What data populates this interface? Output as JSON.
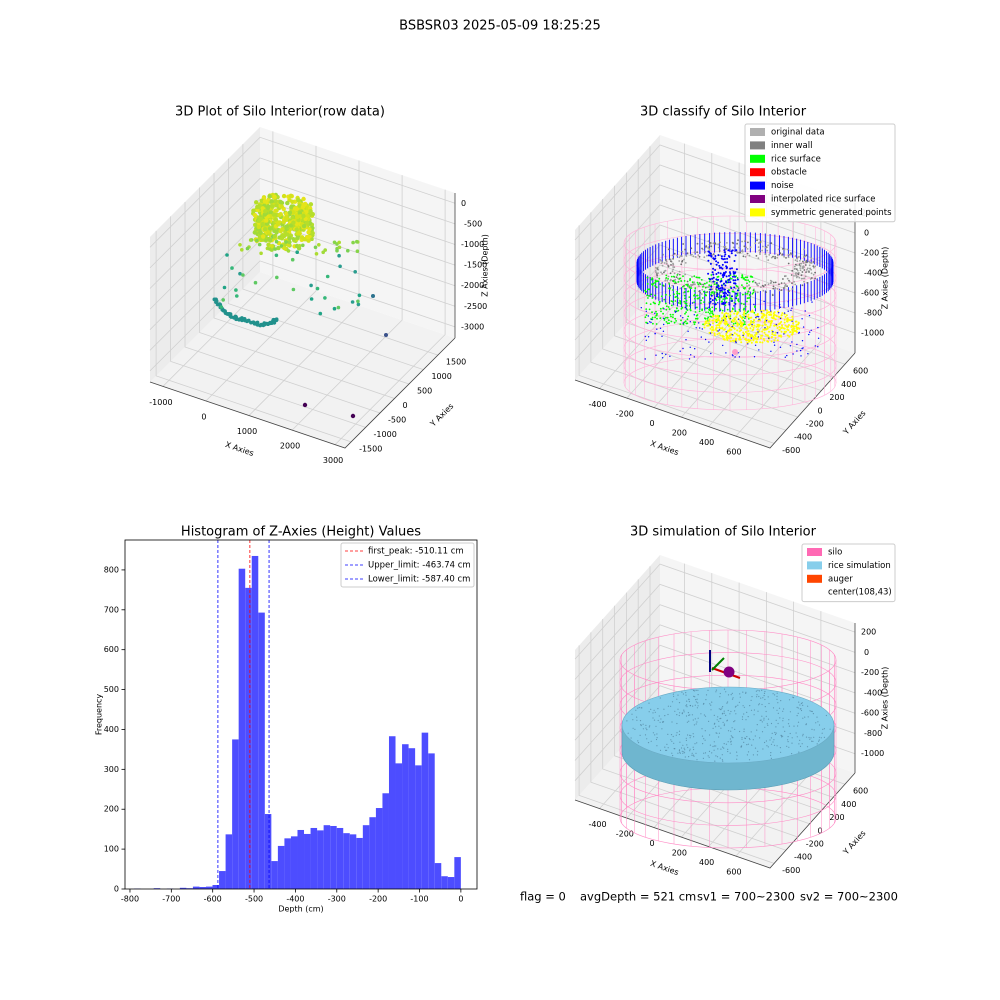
{
  "title": "BSBSR03 2025-05-09 18:25:25",
  "status": [
    "flag = 0",
    "avgDepth = 521 cm",
    "sv1 = 700~2300",
    "sv2 = 700~2300"
  ],
  "chart_data": [
    {
      "type": "scatter3d",
      "title": "3D Plot of Silo Interior(row data)",
      "xlabel": "X Axies",
      "ylabel": "Y Axies",
      "zlabel": "Z Axies (Depth)",
      "xlim": [
        -1300,
        3230
      ],
      "ylim": [
        -1710,
        2090
      ],
      "zlim": [
        -3270,
        250
      ],
      "xticks": [
        -1000,
        0,
        1000,
        2000,
        3000
      ],
      "yticks": [
        -1500,
        -1000,
        -500,
        0,
        500,
        1000,
        1500
      ],
      "zticks": [
        0,
        -500,
        -1000,
        -1500,
        -2000,
        -2500,
        -3000
      ],
      "grid": true
    },
    {
      "type": "scatter3d",
      "title": "3D classify of Silo Interior",
      "xlabel": "X Axies",
      "ylabel": "Y Axies",
      "zlabel": "Z Axies (Depth)",
      "xlim": [
        -580,
        850
      ],
      "ylim": [
        -670,
        770
      ],
      "zlim": [
        -1200,
        300
      ],
      "xticks": [
        -400,
        -200,
        0,
        200,
        400,
        600
      ],
      "yticks": [
        -600,
        -400,
        -200,
        0,
        200,
        400,
        600
      ],
      "zticks": [
        200,
        0,
        -200,
        -400,
        -600,
        -800,
        -1000
      ],
      "grid": true,
      "legend": [
        {
          "name": "original data",
          "color": "#b0b0b0"
        },
        {
          "name": "inner wall",
          "color": "#808080"
        },
        {
          "name": "rice surface",
          "color": "#00ff00"
        },
        {
          "name": "obstacle",
          "color": "#ff0000"
        },
        {
          "name": "noise",
          "color": "#0000ff"
        },
        {
          "name": "interpolated rice surface",
          "color": "#800080"
        },
        {
          "name": "symmetric generated points",
          "color": "#ffff00"
        }
      ]
    },
    {
      "type": "histogram",
      "title": "Histogram of Z-Axies (Height) Values",
      "xlabel": "Depth (cm)",
      "ylabel": "Frequency",
      "color": "#4d4dff",
      "bins": [
        -790.0,
        -774.2,
        -758.4,
        -742.6,
        -726.8,
        -711.0,
        -695.2,
        -679.4,
        -663.6,
        -647.8,
        -632.0,
        -616.2,
        -600.4,
        -584.6,
        -568.8,
        -553.0,
        -537.2,
        -521.4,
        -505.6,
        -489.8,
        -474.0,
        -458.2,
        -442.4,
        -426.6,
        -410.8,
        -395.0,
        -379.2,
        -363.4,
        -347.6,
        -331.8,
        -316.0,
        -300.2,
        -284.4,
        -268.6,
        -252.8,
        -237.0,
        -221.2,
        -205.4,
        -189.6,
        -173.8,
        -158.0,
        -142.2,
        -126.4,
        -110.6,
        -94.8,
        -79.0,
        -63.2,
        -47.4,
        -31.6,
        -15.8,
        0.0
      ],
      "values": [
        1,
        0,
        0,
        2,
        0,
        1,
        0,
        3,
        2,
        6,
        5,
        6,
        10,
        45,
        137,
        375,
        803,
        755,
        835,
        693,
        188,
        70,
        108,
        127,
        132,
        148,
        138,
        153,
        147,
        160,
        158,
        153,
        140,
        137,
        128,
        160,
        180,
        203,
        240,
        383,
        315,
        363,
        353,
        310,
        392,
        340,
        65,
        32,
        30,
        80
      ],
      "xlim": [
        -812,
        39
      ],
      "ylim": [
        0,
        875
      ],
      "xticks": [
        -800,
        -700,
        -600,
        -500,
        -400,
        -300,
        -200,
        -100,
        0
      ],
      "yticks": [
        0,
        100,
        200,
        300,
        400,
        500,
        600,
        700,
        800
      ],
      "lines": [
        {
          "label": "first_peak: -510.11 cm",
          "value": -510.11,
          "color": "#ff0000"
        },
        {
          "label": "Upper_limit: -463.74 cm",
          "value": -463.74,
          "color": "#0000ff"
        },
        {
          "label": "Lower_limit: -587.40 cm",
          "value": -587.4,
          "color": "#0000ff"
        }
      ],
      "legend_loc": "upper right"
    },
    {
      "type": "scatter3d",
      "title": "3D simulation of Silo Interior",
      "xlabel": "X Axies",
      "ylabel": "Y Axies",
      "zlabel": "Z Axies (Depth)",
      "xlim": [
        -580,
        850
      ],
      "ylim": [
        -670,
        770
      ],
      "zlim": [
        -1190,
        290
      ],
      "xticks": [
        -400,
        -200,
        0,
        200,
        400,
        600
      ],
      "yticks": [
        -600,
        -400,
        -200,
        0,
        200,
        400,
        600
      ],
      "zticks": [
        200,
        0,
        -200,
        -400,
        -600,
        -800,
        -1000
      ],
      "grid": true,
      "legend": [
        {
          "name": "silo",
          "color": "#ff69b4"
        },
        {
          "name": "rice simulation",
          "color": "#87ceeb"
        },
        {
          "name": "auger",
          "color": "#ff4500"
        },
        {
          "name": "center(108,43)"
        }
      ]
    }
  ]
}
